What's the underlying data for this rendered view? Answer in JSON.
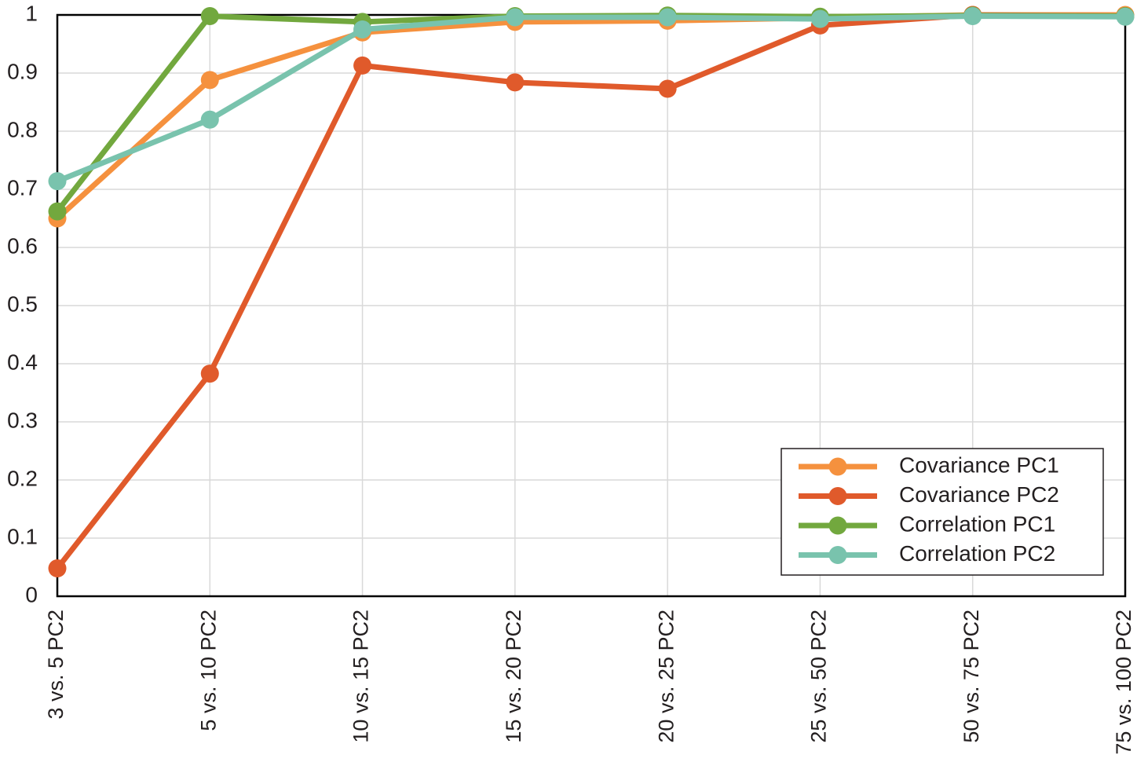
{
  "chart_data": {
    "type": "line",
    "categories": [
      "3 vs. 5 PC2",
      "5 vs. 10 PC2",
      "10 vs. 15 PC2",
      "15 vs. 20 PC2",
      "20 vs. 25 PC2",
      "25 vs. 50 PC2",
      "50 vs. 75 PC2",
      "75 vs. 100 PC2"
    ],
    "series": [
      {
        "name": "Covariance PC1",
        "color": "#f5913e",
        "values": [
          0.65,
          0.888,
          0.97,
          0.988,
          0.99,
          0.995,
          1.0,
          1.0
        ]
      },
      {
        "name": "Covariance PC2",
        "color": "#e05a2b",
        "values": [
          0.048,
          0.383,
          0.913,
          0.884,
          0.873,
          0.982,
          1.0,
          0.998
        ]
      },
      {
        "name": "Correlation PC1",
        "color": "#72a83e",
        "values": [
          0.662,
          0.998,
          0.988,
          0.998,
          0.999,
          0.997,
          0.999,
          0.998
        ]
      },
      {
        "name": "Correlation PC2",
        "color": "#79c3ad",
        "values": [
          0.714,
          0.82,
          0.975,
          0.996,
          0.996,
          0.993,
          0.998,
          0.997
        ]
      }
    ],
    "ylim": [
      0,
      1
    ],
    "yticks": [
      0,
      0.1,
      0.2,
      0.3,
      0.4,
      0.5,
      0.6,
      0.7,
      0.8,
      0.9,
      1
    ],
    "grid": true,
    "legend": "lower right"
  }
}
